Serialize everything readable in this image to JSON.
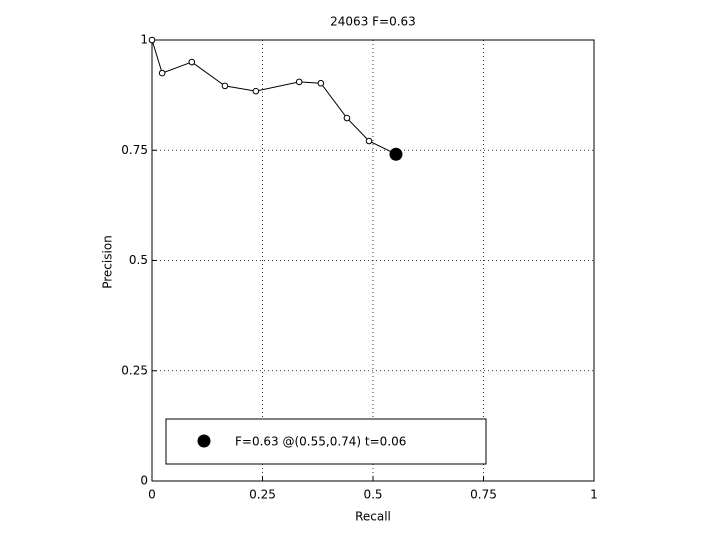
{
  "chart_data": {
    "type": "line",
    "title": "24063 F=0.63",
    "x_label": "Recall",
    "y_label": "Precision",
    "series": [
      {
        "color": "#000000",
        "x": [
          0.0,
          0.023,
          0.09,
          0.165,
          0.235,
          0.333,
          0.382,
          0.441,
          0.491,
          0.552
        ],
        "values": [
          1.0,
          0.925,
          0.95,
          0.896,
          0.884,
          0.905,
          0.902,
          0.823,
          0.771,
          0.741
        ]
      },
      {
        "name": "F=0.63 @(0.55,0.74) t=0.06",
        "color": "#000000",
        "x": [
          0.552
        ],
        "values": [
          0.741
        ]
      }
    ],
    "xlim": [
      0,
      1
    ],
    "ylim": [
      0,
      1
    ],
    "xticks": [
      0,
      0.25,
      0.5,
      0.75,
      1
    ],
    "yticks": [
      0,
      0.25,
      0.5,
      0.75,
      1
    ],
    "grid": true,
    "legend": "lower left"
  }
}
